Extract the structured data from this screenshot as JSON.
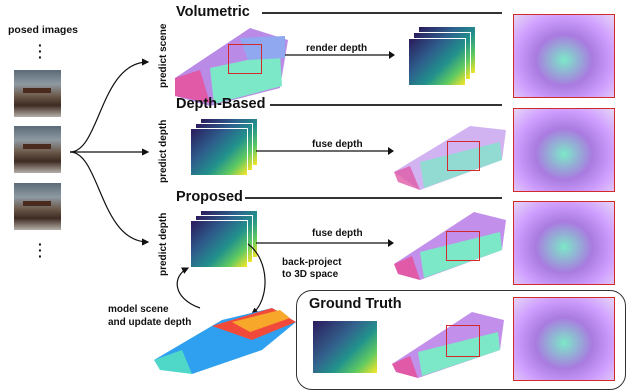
{
  "left": {
    "title": "posed images"
  },
  "sections": {
    "volumetric": {
      "title": "Volumetric",
      "side_label": "predict scene",
      "step_label": "render depth"
    },
    "depth_based": {
      "title": "Depth-Based",
      "side_label": "predict depth",
      "step_label": "fuse depth"
    },
    "proposed": {
      "title": "Proposed",
      "side_label": "predict depth",
      "step_label": "fuse depth",
      "backproject_line1": "back-project",
      "backproject_line2": "to 3D space",
      "loop_line1": "model scene",
      "loop_line2": "and update depth"
    },
    "ground_truth": {
      "title": "Ground Truth"
    }
  },
  "colors": {
    "highlight_box": "#d22a2a",
    "rule": "#333333"
  }
}
